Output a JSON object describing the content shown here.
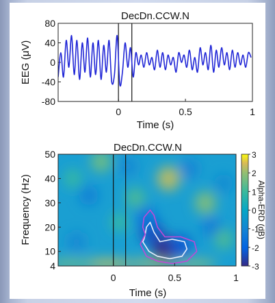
{
  "chart_data": [
    {
      "type": "line",
      "title": "DecDn.CCW.N",
      "xlabel": "Time (s)",
      "ylabel": "EEG (μV)",
      "xlim": [
        -0.45,
        1.0
      ],
      "ylim": [
        -80,
        80
      ],
      "xticks": [
        0,
        0.5,
        1
      ],
      "xtick_labels": [
        "0",
        "0.5",
        "1"
      ],
      "yticks": [
        80,
        40,
        0,
        -40,
        -80
      ],
      "ytick_labels": [
        "80",
        "40",
        "0",
        "-40",
        "-80"
      ],
      "vlines": [
        0,
        0.1
      ],
      "series": [
        {
          "color": "#1f25d6",
          "x": [
            -0.45,
            -0.43,
            -0.41,
            -0.39,
            -0.37,
            -0.35,
            -0.33,
            -0.31,
            -0.29,
            -0.27,
            -0.25,
            -0.23,
            -0.21,
            -0.19,
            -0.17,
            -0.15,
            -0.13,
            -0.11,
            -0.09,
            -0.07,
            -0.05,
            -0.03,
            -0.01,
            0.01,
            0.03,
            0.05,
            0.07,
            0.09,
            0.11,
            0.13,
            0.15,
            0.17,
            0.19,
            0.21,
            0.23,
            0.25,
            0.27,
            0.29,
            0.31,
            0.33,
            0.35,
            0.37,
            0.39,
            0.41,
            0.43,
            0.45,
            0.47,
            0.49,
            0.51,
            0.53,
            0.55,
            0.57,
            0.59,
            0.61,
            0.63,
            0.65,
            0.67,
            0.69,
            0.71,
            0.73,
            0.75,
            0.77,
            0.79,
            0.81,
            0.83,
            0.85,
            0.87,
            0.89,
            0.91,
            0.93,
            0.95,
            0.97,
            0.99
          ],
          "y": [
            -30,
            20,
            -30,
            45,
            -10,
            55,
            -25,
            45,
            -35,
            40,
            -20,
            50,
            -30,
            40,
            -25,
            45,
            -35,
            35,
            -20,
            45,
            -40,
            -25,
            55,
            -45,
            -20,
            40,
            -10,
            30,
            -30,
            20,
            -5,
            15,
            -10,
            20,
            -5,
            10,
            -15,
            25,
            -10,
            20,
            -15,
            15,
            -5,
            10,
            -20,
            20,
            0,
            15,
            -10,
            25,
            -15,
            10,
            -20,
            30,
            -5,
            20,
            -15,
            35,
            -20,
            25,
            -10,
            30,
            -5,
            20,
            -15,
            25,
            -10,
            20,
            -5,
            15,
            -10,
            20,
            10
          ]
        }
      ]
    },
    {
      "type": "heatmap",
      "title": "DecDn.CCW.N",
      "xlabel": "Time (s)",
      "ylabel": "Frequency (Hz)",
      "xlim": [
        -0.45,
        1.0
      ],
      "ylim": [
        4,
        50
      ],
      "xticks": [
        0,
        0.5,
        1
      ],
      "xtick_labels": [
        "0",
        "0.5",
        "1"
      ],
      "yticks": [
        50,
        40,
        30,
        20,
        10,
        4
      ],
      "ytick_labels": [
        "50",
        "40",
        "30",
        "20",
        "10",
        "4"
      ],
      "vlines": [
        0,
        0.1
      ],
      "colorbar": {
        "label": "Alpha-ERD (dB)",
        "range": [
          -3,
          3
        ],
        "ticks": [
          3,
          2,
          1,
          0,
          -1,
          -2,
          -3
        ],
        "tick_labels": [
          "3",
          "2",
          "1",
          "0",
          "-1",
          "-2",
          "-3"
        ],
        "colormap": "parula"
      },
      "blobs": [
        {
          "t": 0.42,
          "f": 11,
          "value": -3.0
        },
        {
          "t": 0.31,
          "f": 18,
          "value": -2.4
        },
        {
          "t": 0.55,
          "f": 12,
          "value": -2.2
        },
        {
          "t": 0.27,
          "f": 24,
          "value": -1.6
        },
        {
          "t": 0.8,
          "f": 20,
          "value": -1.3
        },
        {
          "t": -0.2,
          "f": 33,
          "value": -1.2
        },
        {
          "t": 0.62,
          "f": 44,
          "value": -1.1
        },
        {
          "t": 0.12,
          "f": 45,
          "value": -1.0
        },
        {
          "t": -0.3,
          "f": 14,
          "value": -1.0
        },
        {
          "t": 0.9,
          "f": 38,
          "value": -0.9
        },
        {
          "t": -0.05,
          "f": 5,
          "value": 2.6
        },
        {
          "t": 0.3,
          "f": 5,
          "value": 2.2
        },
        {
          "t": 0.65,
          "f": 5,
          "value": 2.0
        },
        {
          "t": -0.35,
          "f": 5,
          "value": 1.8
        },
        {
          "t": 0.45,
          "f": 40,
          "value": 2.3
        },
        {
          "t": 0.75,
          "f": 30,
          "value": 1.8
        },
        {
          "t": -0.1,
          "f": 47,
          "value": 1.6
        },
        {
          "t": 0.18,
          "f": 32,
          "value": 1.2
        },
        {
          "t": 0.9,
          "f": 15,
          "value": 1.2
        },
        {
          "t": -0.33,
          "f": 40,
          "value": 0.9
        },
        {
          "t": 0.05,
          "f": 22,
          "value": 0.9
        }
      ],
      "contours": [
        {
          "color": "#e9f0ff",
          "t": [
            0.24,
            0.29,
            0.36,
            0.46,
            0.56,
            0.6,
            0.58,
            0.48,
            0.38,
            0.33,
            0.3,
            0.27,
            0.26,
            0.25,
            0.24
          ],
          "f": [
            14,
            10,
            8,
            7,
            8,
            11,
            14,
            15,
            14,
            18,
            22,
            20,
            17,
            15,
            14
          ]
        },
        {
          "color": "#c04ad6",
          "t": [
            0.22,
            0.27,
            0.36,
            0.48,
            0.6,
            0.68,
            0.66,
            0.55,
            0.42,
            0.36,
            0.33,
            0.3,
            0.25,
            0.24,
            0.26,
            0.24,
            0.22
          ],
          "f": [
            13,
            8,
            6,
            5,
            6,
            10,
            14,
            16,
            16,
            20,
            25,
            27,
            24,
            20,
            17,
            15,
            13
          ]
        }
      ]
    }
  ]
}
